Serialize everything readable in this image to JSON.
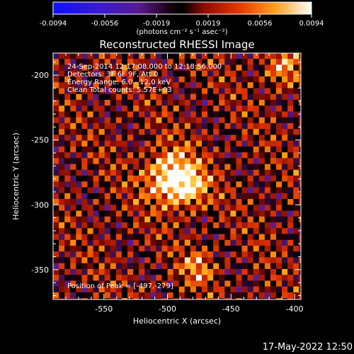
{
  "colorbar": {
    "ticks": [
      "-0.0094",
      "-0.0056",
      "-0.0019",
      "0.0019",
      "0.0056",
      "0.0094"
    ],
    "unit_label": "(photons cm⁻² s⁻¹ asec⁻²)"
  },
  "annotations": {
    "time_range": "24-Sep-2014 12:17:08.000 to 12:18:56.000",
    "detectors": "Detectors: 3F 6F 9F, Att 0",
    "energy": "Energy Range: 6.0 - 12.0 keV",
    "clean": "Clean    Total counts: 5.57E+03",
    "peak": "Position of Peak = [-497,-279]"
  },
  "footer_date": "17-May-2022 12:50",
  "chart_data": {
    "type": "heatmap",
    "title": "Reconstructed RHESSI Image",
    "xlabel": "Heliocentric X (arcsec)",
    "ylabel": "Heliocentric Y (arcsec)",
    "xlim": [
      -590,
      -395
    ],
    "ylim": [
      -373,
      -183
    ],
    "xticks": [
      -550,
      -500,
      -450,
      -400
    ],
    "yticks": [
      -350,
      -300,
      -250,
      -200
    ],
    "xtick_labels": [
      "-550",
      "-500",
      "-450",
      "-400"
    ],
    "ytick_labels": [
      "-350",
      "-300",
      "-250",
      "-200"
    ],
    "color_range": [
      -0.0094,
      0.0094
    ],
    "colormap": [
      "#000080",
      "#4a1ac8",
      "#6a2a9a",
      "#000000",
      "#7a0a00",
      "#d83000",
      "#ff8a00",
      "#ffd040",
      "#ffffff"
    ],
    "peak": [
      -497,
      -279
    ],
    "sources": [
      {
        "x": -497,
        "y": -279,
        "sigma": 14,
        "amp": 0.0094
      },
      {
        "x": -482,
        "y": -287,
        "sigma": 10,
        "amp": 0.005
      },
      {
        "x": -476,
        "y": -348,
        "sigma": 9,
        "amp": 0.0048
      },
      {
        "x": -410,
        "y": -195,
        "sigma": 10,
        "amp": 0.005
      }
    ],
    "grid": false
  }
}
